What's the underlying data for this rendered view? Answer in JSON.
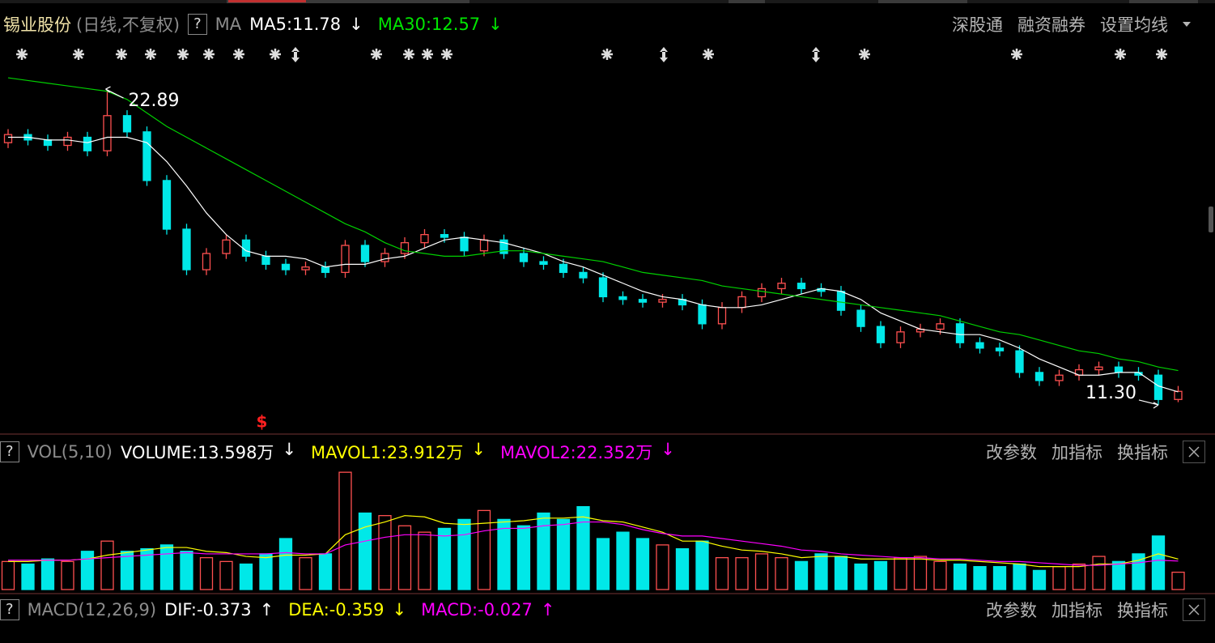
{
  "header": {
    "stock": "锡业股份",
    "period": "(日线,不复权)",
    "help": "?",
    "indicator": "MA",
    "legend": [
      {
        "text": "MA5:11.78",
        "arrow": "↓",
        "color": "#ffffff"
      },
      {
        "text": "MA30:12.57",
        "arrow": "↓",
        "color": "#00e600"
      }
    ],
    "links": [
      "深股通",
      "融资融券",
      "设置均线"
    ]
  },
  "chart_data": [
    {
      "type": "candlestick",
      "up_color": "#ff5050",
      "down_color": "#00e8e8",
      "ylim": [
        10.25,
        24.93
      ],
      "open": [
        21.0,
        21.3,
        21.1,
        20.9,
        21.2,
        20.7,
        22.0,
        21.4,
        19.6,
        17.8,
        16.3,
        16.9,
        17.4,
        16.8,
        16.5,
        16.3,
        16.4,
        16.2,
        17.2,
        16.6,
        16.9,
        17.3,
        17.6,
        17.5,
        17.0,
        17.4,
        16.9,
        16.6,
        16.5,
        16.2,
        16.0,
        15.3,
        15.2,
        15.1,
        15.2,
        15.0,
        14.3,
        14.9,
        15.3,
        15.6,
        15.8,
        15.6,
        15.5,
        14.8,
        14.2,
        13.6,
        14.0,
        14.1,
        14.3,
        13.6,
        13.4,
        13.3,
        12.5,
        12.2,
        12.4,
        12.6,
        12.7,
        12.5,
        12.4,
        11.5
      ],
      "high": [
        21.5,
        21.5,
        21.3,
        21.4,
        21.4,
        22.89,
        22.2,
        21.6,
        19.8,
        18.0,
        17.1,
        17.6,
        17.6,
        17.0,
        16.7,
        16.6,
        16.6,
        17.4,
        17.4,
        17.1,
        17.5,
        17.8,
        17.8,
        17.7,
        17.6,
        17.6,
        17.1,
        16.8,
        16.7,
        16.4,
        16.2,
        15.5,
        15.4,
        15.4,
        15.4,
        15.2,
        15.1,
        15.5,
        15.8,
        16.0,
        16.0,
        15.8,
        15.7,
        15.0,
        14.4,
        14.2,
        14.3,
        14.5,
        14.5,
        13.8,
        13.6,
        13.5,
        12.7,
        12.6,
        12.8,
        12.9,
        12.9,
        12.7,
        12.6,
        12.0
      ],
      "low": [
        20.8,
        20.9,
        20.7,
        20.7,
        20.5,
        20.5,
        21.2,
        19.4,
        17.6,
        16.1,
        16.1,
        16.7,
        16.6,
        16.3,
        16.1,
        16.1,
        16.0,
        16.0,
        16.4,
        16.4,
        16.7,
        17.1,
        17.3,
        16.8,
        16.8,
        16.7,
        16.4,
        16.3,
        16.0,
        15.8,
        15.1,
        15.0,
        14.9,
        14.9,
        14.8,
        14.1,
        14.1,
        14.7,
        15.1,
        15.4,
        15.4,
        15.3,
        14.6,
        14.0,
        13.4,
        13.4,
        13.8,
        13.9,
        13.4,
        13.2,
        13.1,
        12.3,
        12.0,
        12.0,
        12.2,
        12.4,
        12.3,
        12.2,
        11.3,
        11.4
      ],
      "close": [
        21.3,
        21.1,
        20.9,
        21.2,
        20.7,
        22.0,
        21.4,
        19.6,
        17.8,
        16.3,
        16.9,
        17.4,
        16.8,
        16.5,
        16.3,
        16.4,
        16.2,
        17.2,
        16.6,
        16.9,
        17.3,
        17.6,
        17.5,
        17.0,
        17.4,
        16.9,
        16.6,
        16.5,
        16.2,
        16.0,
        15.3,
        15.2,
        15.1,
        15.2,
        15.0,
        14.3,
        14.9,
        15.3,
        15.6,
        15.8,
        15.6,
        15.5,
        14.8,
        14.2,
        13.6,
        14.0,
        14.1,
        14.3,
        13.6,
        13.4,
        13.3,
        12.5,
        12.2,
        12.4,
        12.6,
        12.7,
        12.5,
        12.4,
        11.5,
        11.8
      ],
      "series": [
        {
          "name": "MA5",
          "color": "#ffffff",
          "values": [
            21.2,
            21.2,
            21.1,
            21.1,
            21.0,
            21.2,
            21.2,
            21.0,
            20.3,
            19.4,
            18.4,
            17.6,
            17.0,
            16.8,
            16.8,
            16.7,
            16.4,
            16.5,
            16.5,
            16.7,
            16.8,
            17.1,
            17.4,
            17.5,
            17.4,
            17.3,
            17.1,
            16.9,
            16.6,
            16.4,
            16.1,
            15.8,
            15.5,
            15.3,
            15.2,
            15.0,
            14.9,
            14.9,
            15.0,
            15.2,
            15.4,
            15.6,
            15.5,
            15.2,
            14.7,
            14.4,
            14.1,
            14.0,
            13.9,
            13.9,
            13.7,
            13.4,
            13.0,
            12.7,
            12.4,
            12.4,
            12.5,
            12.5,
            12.0,
            11.78
          ]
        },
        {
          "name": "MA30",
          "color": "#00d000",
          "values": [
            23.4,
            23.3,
            23.2,
            23.1,
            23.0,
            22.9,
            22.6,
            22.1,
            21.6,
            21.2,
            20.8,
            20.4,
            20.0,
            19.6,
            19.2,
            18.8,
            18.4,
            18.0,
            17.7,
            17.3,
            17.0,
            16.9,
            16.8,
            16.8,
            16.9,
            17.0,
            17.0,
            16.9,
            16.8,
            16.7,
            16.6,
            16.4,
            16.2,
            16.1,
            16.0,
            15.9,
            15.7,
            15.6,
            15.5,
            15.4,
            15.3,
            15.2,
            15.1,
            15.0,
            14.9,
            14.8,
            14.7,
            14.6,
            14.4,
            14.2,
            14.0,
            13.9,
            13.7,
            13.5,
            13.3,
            13.2,
            13.0,
            12.9,
            12.7,
            12.57
          ]
        }
      ],
      "annotations": [
        {
          "label": "22.89",
          "value": 22.89,
          "index": 5
        },
        {
          "label": "11.30",
          "value": 11.3,
          "index": 58
        }
      ],
      "signals": [
        {
          "label": "$",
          "index": 13,
          "color": "#ff2020"
        }
      ]
    },
    {
      "type": "bar",
      "title": "VOL(5,10)",
      "help": "?",
      "ylim": [
        0,
        94
      ],
      "values": [
        22,
        20,
        24,
        22,
        30,
        38,
        30,
        32,
        35,
        30,
        25,
        22,
        20,
        28,
        40,
        25,
        28,
        92,
        60,
        58,
        50,
        45,
        48,
        55,
        62,
        55,
        50,
        60,
        55,
        65,
        40,
        45,
        40,
        35,
        32,
        38,
        25,
        25,
        28,
        25,
        22,
        28,
        26,
        20,
        22,
        25,
        26,
        22,
        20,
        18,
        18,
        20,
        15,
        18,
        20,
        26,
        22,
        28,
        42,
        13.598
      ],
      "series": [
        {
          "name": "MAVOL1",
          "color": "#ffff00",
          "values": [
            22,
            22,
            23,
            23,
            24,
            27,
            29,
            31,
            33,
            33,
            30,
            29,
            26,
            25,
            27,
            27,
            28,
            43,
            49,
            53,
            58,
            57,
            52,
            51,
            52,
            53,
            54,
            56,
            56,
            57,
            54,
            53,
            49,
            45,
            38,
            38,
            34,
            31,
            30,
            28,
            25,
            26,
            26,
            24,
            24,
            24,
            24,
            23,
            23,
            22,
            21,
            20,
            18,
            18,
            18,
            20,
            20,
            23,
            28,
            23.912
          ]
        },
        {
          "name": "MAVOL2",
          "color": "#ff00ff",
          "values": [
            23,
            23,
            23,
            23,
            24,
            25,
            26,
            27,
            28,
            29,
            28,
            28,
            28,
            28,
            29,
            28,
            28,
            35,
            38,
            41,
            43,
            43,
            42,
            43,
            46,
            48,
            48,
            50,
            51,
            53,
            53,
            51,
            47,
            44,
            42,
            42,
            40,
            38,
            36,
            34,
            31,
            30,
            28,
            27,
            26,
            25,
            25,
            24,
            24,
            23,
            22,
            22,
            21,
            20,
            19,
            19,
            20,
            21,
            23,
            22.352
          ]
        }
      ],
      "legend": [
        {
          "text": "VOLUME:13.598万",
          "arrow": "↓",
          "color": "#ffffff"
        },
        {
          "text": "MAVOL1:23.912万",
          "arrow": "↓",
          "color": "#ffff00"
        },
        {
          "text": "MAVOL2:22.352万",
          "arrow": "↓",
          "color": "#ff00ff"
        }
      ],
      "buttons": [
        "改参数",
        "加指标",
        "换指标"
      ]
    }
  ],
  "macd_panel": {
    "title": "MACD(12,26,9)",
    "help": "?",
    "legend": [
      {
        "text": "DIF:-0.373",
        "arrow": "↑",
        "color": "#ffffff"
      },
      {
        "text": "DEA:-0.359",
        "arrow": "↓",
        "color": "#ffff00"
      },
      {
        "text": "MACD:-0.027",
        "arrow": "↑",
        "color": "#ff00ff"
      }
    ],
    "buttons": [
      "改参数",
      "加指标",
      "换指标"
    ]
  }
}
